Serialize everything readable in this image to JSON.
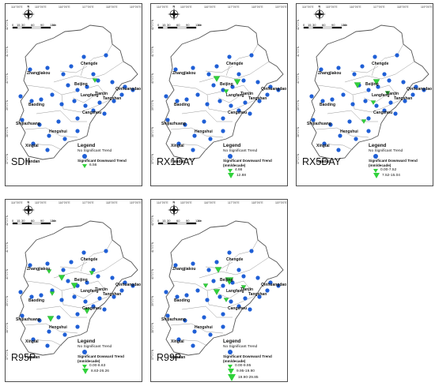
{
  "colors": {
    "station": "#1f5fd6",
    "trend": "#2fd23a",
    "border": "#666666",
    "bg": "#ffffff"
  },
  "scale": {
    "nums": [
      "0",
      "15",
      "30",
      "60",
      "90",
      "120"
    ],
    "unit": "km"
  },
  "north": "N",
  "lon_ticks": [
    "114°0'0\"E",
    "115°0'0\"E",
    "116°0'0\"E",
    "117°0'0\"E",
    "118°0'0\"E",
    "119°0'0\"E"
  ],
  "lat_ticks": [
    "42°0'0\"N",
    "41°0'0\"N",
    "40°0'0\"N",
    "39°0'0\"N",
    "38°0'0\"N",
    "37°0'0\"N"
  ],
  "cities": [
    "Chengde",
    "Zhangjiakou",
    "Beijing",
    "Qinhuangdao",
    "Tianjin",
    "Langfang",
    "Tangshan",
    "Baoding",
    "Cangzhou",
    "Shijiazhuang",
    "Hengshui",
    "Xingtai",
    "Handan"
  ],
  "legend_common": {
    "title": "Legend",
    "nosig": "No Significant Trend",
    "sig": "Significant Downward Trend",
    "sig_alt": "Significant Dowward Trend",
    "unit": "(mm/decade)"
  },
  "panels": [
    {
      "label": "SDII",
      "sig_key": "sig",
      "classes": [
        "6.56"
      ]
    },
    {
      "label": "RX1DAY",
      "sig_key": "sig",
      "classes": [
        "4.66",
        "12.88"
      ]
    },
    {
      "label": "RX5DAY",
      "sig_key": "sig",
      "classes": [
        "0.00-7.52",
        "7.52-15.04"
      ]
    },
    {
      "label": "R95P",
      "sig_key": "sig_alt",
      "classes": [
        "0.00-8.63",
        "8.63-26.26"
      ]
    },
    {
      "label": "R99P",
      "sig_key": "sig",
      "classes": [
        "0.00-9.95",
        "9.95-19.90",
        "19.90-29.85"
      ]
    }
  ]
}
